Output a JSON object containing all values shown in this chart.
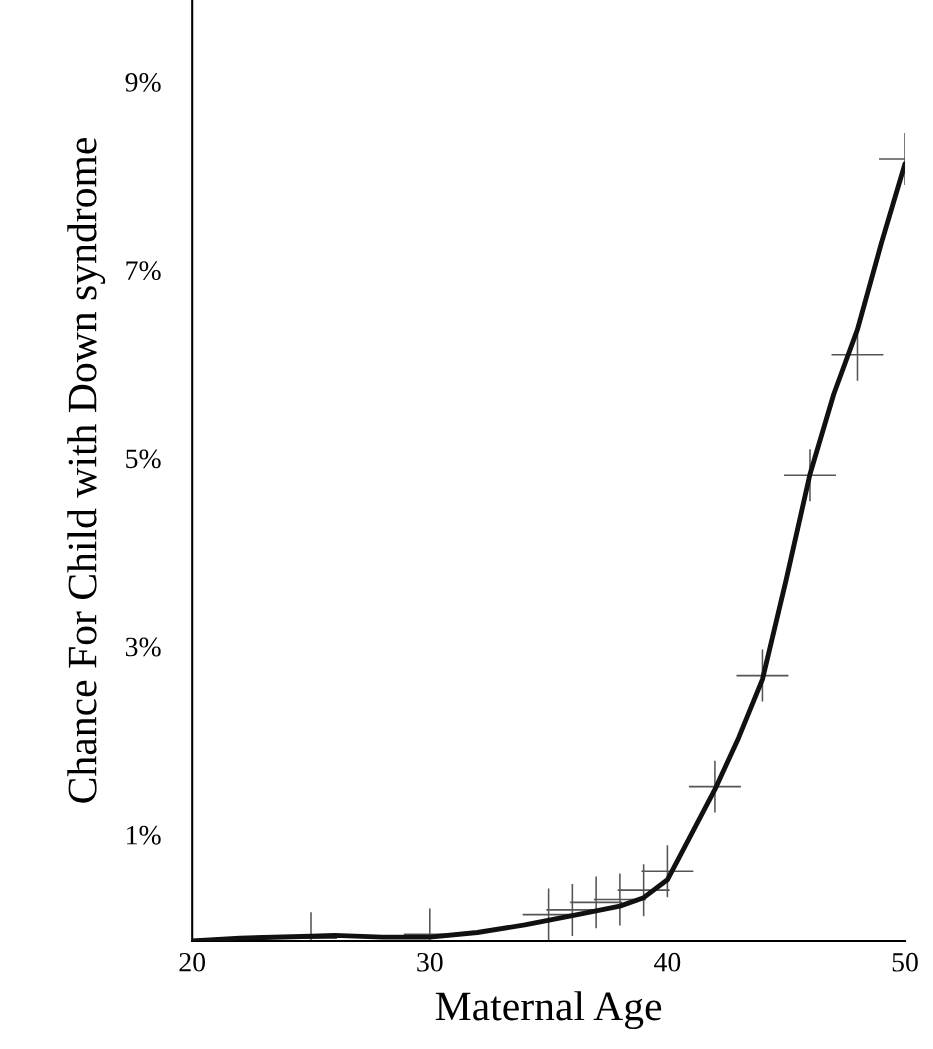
{
  "chart_data": {
    "type": "line",
    "xlabel": "Maternal Age",
    "ylabel": "Chance For Child with Down syndrome",
    "xlim": [
      20,
      50
    ],
    "xticks": [
      20,
      30,
      40,
      50
    ],
    "ylim": [
      -0.13,
      9.87
    ],
    "yticks": [
      {
        "value": 1,
        "label": "1%"
      },
      {
        "value": 3,
        "label": "3%"
      },
      {
        "value": 5,
        "label": "5%"
      },
      {
        "value": 7,
        "label": "7%"
      },
      {
        "value": 9,
        "label": "9%"
      }
    ],
    "grid": false,
    "legend": false,
    "series": [
      {
        "type": "scatter",
        "marker": "cross",
        "color": "#555555",
        "x": [
          25,
          30,
          35,
          36,
          37,
          38,
          39,
          40,
          42,
          44,
          46,
          48,
          50
        ],
        "values": [
          -0.1,
          -0.06,
          0.15,
          0.2,
          0.28,
          0.31,
          0.41,
          0.61,
          1.51,
          2.69,
          4.82,
          6.1,
          8.18
        ]
      },
      {
        "line_style": "solid",
        "color": "#111111",
        "x": [
          20,
          22,
          25,
          26,
          28,
          30,
          32,
          34,
          36,
          38,
          39,
          40,
          41,
          42,
          43,
          44,
          45,
          46,
          47,
          48,
          49,
          50
        ],
        "values": [
          -0.13,
          -0.1,
          -0.08,
          -0.07,
          -0.09,
          -0.09,
          -0.04,
          0.04,
          0.14,
          0.24,
          0.33,
          0.52,
          1.0,
          1.48,
          2.03,
          2.65,
          3.71,
          4.83,
          5.68,
          6.37,
          7.28,
          8.13
        ]
      }
    ]
  }
}
